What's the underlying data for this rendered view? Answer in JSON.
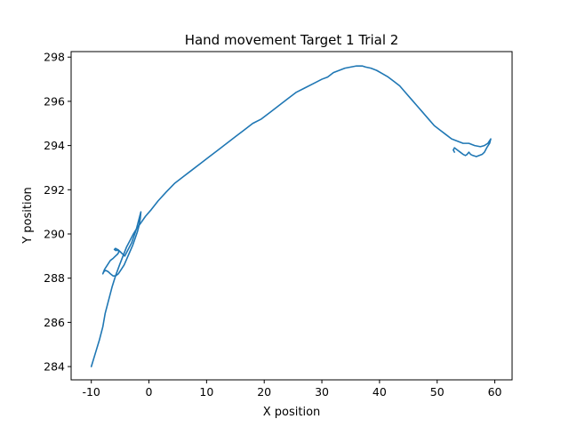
{
  "chart_data": {
    "type": "line",
    "title": "Hand movement Target 1 Trial 2",
    "xlabel": "X position",
    "ylabel": "Y position",
    "xlim": [
      -13.5,
      63
    ],
    "ylim": [
      283.4,
      298.25
    ],
    "xticks": [
      -10,
      0,
      10,
      20,
      30,
      40,
      50,
      60
    ],
    "yticks": [
      284,
      286,
      288,
      290,
      292,
      294,
      296,
      298
    ],
    "grid": false,
    "legend": "none",
    "series": [
      {
        "color": "#1f77b4",
        "x": [
          -10.0,
          -9.3,
          -8.6,
          -8.0,
          -7.6,
          -7.0,
          -6.4,
          -5.8,
          -5.1,
          -4.5,
          -3.9,
          -3.3,
          -2.7,
          -2.0,
          -1.4,
          -0.6,
          0.4,
          1.6,
          3.0,
          4.5,
          6.0,
          7.5,
          9.0,
          10.5,
          12.0,
          13.5,
          15.0,
          16.5,
          18.0,
          19.5,
          21.0,
          22.5,
          24.0,
          25.5,
          27.0,
          28.5,
          30.0,
          31.0,
          32.0,
          33.0,
          34.0,
          35.0,
          36.0,
          37.0,
          37.6,
          38.5,
          39.5,
          40.5,
          41.5,
          42.5,
          43.5,
          44.5,
          45.5,
          46.5,
          47.5,
          48.5,
          49.5,
          50.5,
          51.5,
          52.5,
          53.5,
          54.5,
          55.5,
          56.5,
          57.5,
          58.2,
          58.8,
          59.3,
          59.1,
          58.6,
          58.2,
          57.8,
          57.3,
          56.8,
          56.2,
          55.8,
          55.5,
          55.2,
          54.9,
          54.5,
          54.0,
          53.5,
          53.0,
          52.8,
          53.0
        ],
        "y": [
          284.0,
          284.6,
          285.2,
          285.8,
          286.4,
          287.0,
          287.6,
          288.1,
          288.6,
          289.0,
          289.4,
          289.7,
          290.0,
          290.3,
          290.5,
          290.8,
          291.1,
          291.5,
          291.9,
          292.3,
          292.6,
          292.9,
          293.2,
          293.5,
          293.8,
          294.1,
          294.4,
          294.7,
          295.0,
          295.2,
          295.5,
          295.8,
          296.1,
          296.4,
          296.6,
          296.8,
          297.0,
          297.1,
          297.3,
          297.4,
          297.5,
          297.55,
          297.6,
          297.6,
          297.55,
          297.5,
          297.4,
          297.25,
          297.1,
          296.9,
          296.7,
          296.4,
          296.1,
          295.8,
          295.5,
          295.2,
          294.9,
          294.7,
          294.5,
          294.3,
          294.2,
          294.1,
          294.1,
          294.0,
          293.95,
          294.0,
          294.1,
          294.3,
          294.1,
          293.9,
          293.7,
          293.6,
          293.55,
          293.5,
          293.55,
          293.6,
          293.7,
          293.6,
          293.55,
          293.6,
          293.7,
          293.8,
          293.9,
          293.8,
          293.7
        ]
      },
      {
        "color": "#1f77b4",
        "x": [
          -1.4,
          -1.5,
          -1.7,
          -2.0,
          -2.4,
          -2.8,
          -3.3,
          -3.8,
          -4.3,
          -4.8,
          -5.3,
          -5.8,
          -6.2,
          -6.7,
          -7.1,
          -7.5,
          -7.8,
          -8.0,
          -7.7,
          -7.2,
          -6.7,
          -6.2,
          -5.8,
          -5.4,
          -5.2,
          -5.5,
          -5.8,
          -6.0,
          -5.7,
          -5.4,
          -5.0,
          -4.6,
          -4.2,
          -3.8,
          -3.4,
          -3.0,
          -2.6,
          -2.2,
          -1.9,
          -1.6,
          -1.4
        ],
        "y": [
          291.0,
          290.7,
          290.4,
          290.1,
          289.8,
          289.5,
          289.2,
          288.9,
          288.6,
          288.4,
          288.2,
          288.1,
          288.1,
          288.2,
          288.3,
          288.35,
          288.3,
          288.2,
          288.4,
          288.6,
          288.8,
          288.9,
          289.0,
          289.1,
          289.2,
          289.3,
          289.35,
          289.3,
          289.25,
          289.3,
          289.2,
          289.1,
          289.0,
          289.2,
          289.4,
          289.6,
          289.9,
          290.2,
          290.5,
          290.8,
          291.0
        ]
      }
    ]
  }
}
